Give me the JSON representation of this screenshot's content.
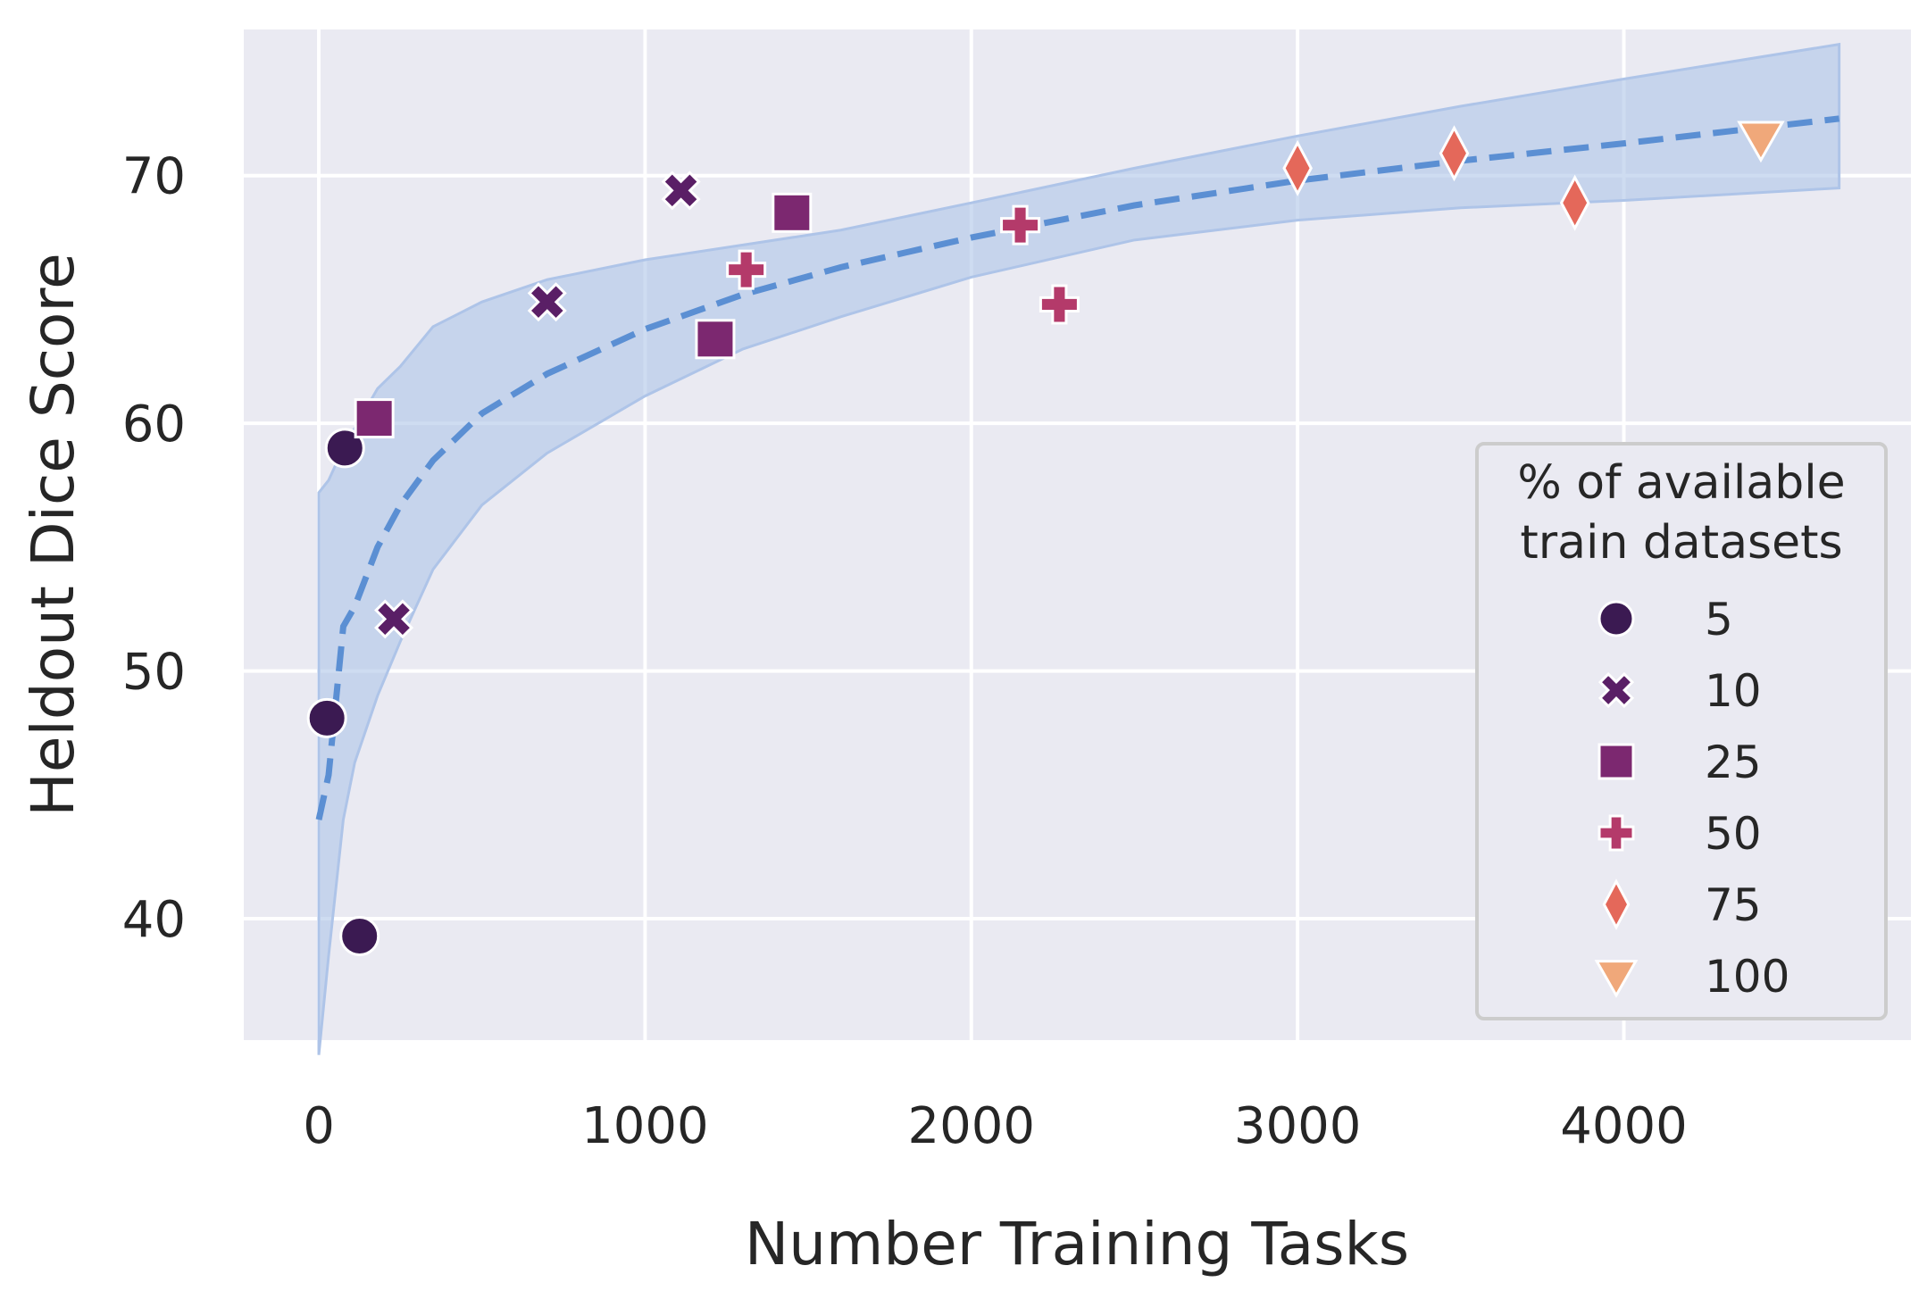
{
  "chart_data": {
    "type": "scatter",
    "xlabel": "Number Training Tasks",
    "ylabel": "Heldout Dice Score",
    "xlim": [
      -230,
      4880
    ],
    "ylim": [
      35.1,
      75.9
    ],
    "xticks": [
      0,
      1000,
      2000,
      3000,
      4000
    ],
    "xtick_labels": [
      "0",
      "1000",
      "2000",
      "3000",
      "4000"
    ],
    "yticks": [
      40,
      50,
      60,
      70
    ],
    "ytick_labels": [
      "40",
      "50",
      "60",
      "70"
    ],
    "grid": true,
    "background": "#eaeaf2",
    "legend": {
      "title_lines": [
        "% of available",
        "train datasets"
      ],
      "placement": "lower-right"
    },
    "series": [
      {
        "name": "5",
        "marker": "circle",
        "color": "#3b1a52",
        "points": [
          [
            25,
            48.1
          ],
          [
            80,
            59.0
          ],
          [
            125,
            39.3
          ]
        ]
      },
      {
        "name": "10",
        "marker": "x",
        "color": "#5a1f66",
        "points": [
          [
            230,
            52.1
          ],
          [
            700,
            64.9
          ],
          [
            1110,
            69.4
          ]
        ]
      },
      {
        "name": "25",
        "marker": "square",
        "color": "#7c2870",
        "points": [
          [
            170,
            60.2
          ],
          [
            1215,
            63.4
          ],
          [
            1450,
            68.5
          ]
        ]
      },
      {
        "name": "50",
        "marker": "plus",
        "color": "#b43a6a",
        "points": [
          [
            1310,
            66.2
          ],
          [
            2150,
            68.0
          ],
          [
            2270,
            64.8
          ]
        ]
      },
      {
        "name": "75",
        "marker": "diamond",
        "color": "#e4685a",
        "points": [
          [
            3000,
            70.3
          ],
          [
            3480,
            70.9
          ],
          [
            3850,
            68.9
          ]
        ]
      },
      {
        "name": "100",
        "marker": "triangle-down",
        "color": "#f0a87a",
        "points": [
          [
            4420,
            71.5
          ]
        ]
      }
    ],
    "fit": {
      "style": "dashed",
      "color": "#5b8fd3",
      "x": [
        0,
        30,
        75,
        110,
        180,
        250,
        350,
        500,
        700,
        1000,
        1300,
        1600,
        2000,
        2500,
        3000,
        3500,
        4000,
        4660
      ],
      "y": [
        44.0,
        45.8,
        51.8,
        52.6,
        55.0,
        56.7,
        58.5,
        60.4,
        62.0,
        63.8,
        65.2,
        66.3,
        67.5,
        68.8,
        69.8,
        70.6,
        71.3,
        72.3
      ],
      "lower": [
        34.5,
        38.5,
        44.0,
        46.3,
        49.0,
        51.2,
        54.1,
        56.7,
        58.8,
        61.1,
        63.0,
        64.3,
        65.9,
        67.4,
        68.2,
        68.7,
        69.0,
        69.5
      ],
      "upper": [
        57.2,
        57.7,
        59.0,
        59.8,
        61.4,
        62.3,
        63.9,
        64.9,
        65.8,
        66.6,
        67.2,
        67.8,
        68.9,
        70.3,
        71.6,
        72.8,
        73.9,
        75.3
      ],
      "band_color": "#aec4e8"
    }
  }
}
